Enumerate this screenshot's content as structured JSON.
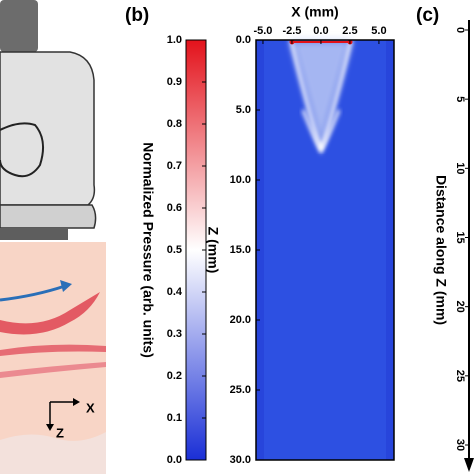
{
  "labels": {
    "panel_b": "(b)",
    "panel_c": "(c)",
    "diagram_x": "X",
    "diagram_z": "Z"
  },
  "chart_data": [
    {
      "type": "colorbar",
      "title": "Normalized Pressure (arb. units)",
      "ylim": [
        0,
        1
      ],
      "yticks": [
        {
          "value": 0,
          "label": "0.0"
        },
        0.1,
        0.2,
        0.3,
        0.4,
        0.5,
        0.6,
        0.7,
        0.8,
        0.9,
        {
          "value": 1,
          "label": "1.0"
        }
      ],
      "colors": [
        "#1a2fd6",
        "#ffffff",
        "#e3121b"
      ]
    },
    {
      "type": "heatmap",
      "x_label": "X (mm)",
      "y_label": "Z (mm)",
      "xlim": [
        -5.6,
        6.3
      ],
      "ylim": [
        0,
        30
      ],
      "xticks": [
        {
          "value": -5,
          "label": "-5.0"
        },
        -2.5,
        {
          "value": 0,
          "label": "0.0"
        },
        2.5,
        {
          "value": 5,
          "label": "5.0"
        }
      ],
      "yticks": [
        {
          "value": 0,
          "label": "0.0"
        },
        {
          "value": 5,
          "label": "5.0"
        },
        {
          "value": 10,
          "label": "10.0"
        },
        {
          "value": 15,
          "label": "15.0"
        },
        {
          "value": 20,
          "label": "20.0"
        },
        {
          "value": 25,
          "label": "25.0"
        },
        {
          "value": 30,
          "label": "30.0"
        }
      ]
    },
    {
      "type": "axis",
      "y_label": "Distance along Z (mm)",
      "ylim": [
        0,
        30
      ],
      "yticks": [
        0,
        5,
        10,
        15,
        20,
        25,
        30
      ]
    }
  ]
}
